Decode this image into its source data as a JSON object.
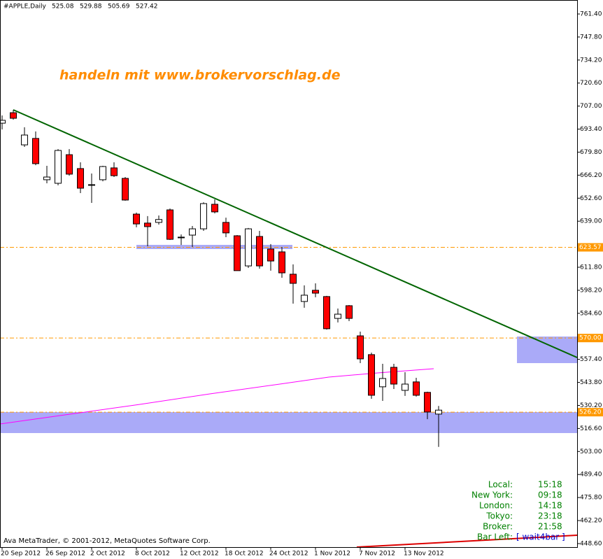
{
  "chart_data": {
    "type": "candlestick",
    "title": "#APPLE,Daily",
    "watermark": "handeln mit www.brokervorschlag.de",
    "footer": "Ava MetaTrader, © 2001-2012, MetaQuotes Software Corp.",
    "categories": [
      "20 Sep 2012",
      null,
      null,
      null,
      "26 Sep 2012",
      null,
      null,
      null,
      "2 Oct 2012",
      null,
      null,
      null,
      "8 Oct 2012",
      null,
      null,
      null,
      "12 Oct 2012",
      null,
      null,
      null,
      "18 Oct 2012",
      null,
      null,
      null,
      "24 Oct 2012",
      null,
      null,
      null,
      "1 Nov 2012",
      null,
      null,
      null,
      "7 Nov 2012",
      null,
      null,
      null,
      "13 Nov 2012",
      null,
      null,
      null
    ],
    "open": [
      696.9,
      703.1,
      684.1,
      687.9,
      663.5,
      661.4,
      678.3,
      670.1,
      660.2,
      663.5,
      670.5,
      664.3,
      643.2,
      637.9,
      638.3,
      645.7,
      629.2,
      630.8,
      634.5,
      649.0,
      638.3,
      630.4,
      612.6,
      630.0,
      622.6,
      620.9,
      607.7,
      591.6,
      598.2,
      594.5,
      581.6,
      589.1,
      571.3,
      560.2,
      541.2,
      552.7,
      539.1,
      544.1,
      537.9,
      525.08
    ],
    "high": [
      701.5,
      704.8,
      694.5,
      692.0,
      671.7,
      681.6,
      681.6,
      673.8,
      667.2,
      671.7,
      673.8,
      665.1,
      644.1,
      642.0,
      642.4,
      646.5,
      631.2,
      636.2,
      650.2,
      651.9,
      641.1,
      630.8,
      635.0,
      633.3,
      625.5,
      623.8,
      613.5,
      601.1,
      602.3,
      594.9,
      587.4,
      589.5,
      573.8,
      561.4,
      554.8,
      554.8,
      549.8,
      546.5,
      538.3,
      529.88
    ],
    "low": [
      693.2,
      699.0,
      682.9,
      672.1,
      661.4,
      660.2,
      665.9,
      655.6,
      649.8,
      662.6,
      665.1,
      651.1,
      635.4,
      624.2,
      637.0,
      627.9,
      625.0,
      623.8,
      633.3,
      643.6,
      629.6,
      609.8,
      611.4,
      611.0,
      609.8,
      605.6,
      590.3,
      587.9,
      594.1,
      575.0,
      579.2,
      580.0,
      555.2,
      534.1,
      532.9,
      539.9,
      535.8,
      535.4,
      522.1,
      505.69
    ],
    "close": [
      698.6,
      699.8,
      689.9,
      673.0,
      665.1,
      680.8,
      666.8,
      658.5,
      660.6,
      671.3,
      665.9,
      651.5,
      637.4,
      635.8,
      640.0,
      628.3,
      629.6,
      634.5,
      649.4,
      644.5,
      632.1,
      609.8,
      634.5,
      612.6,
      615.5,
      608.5,
      602.3,
      595.3,
      596.5,
      575.5,
      584.1,
      581.6,
      557.7,
      536.2,
      546.1,
      542.8,
      542.8,
      536.2,
      526.3,
      527.42
    ],
    "up_color": "#ffffff",
    "down_color": "#ff0000",
    "ylim": [
      446.1,
      769.66
    ],
    "yticks": [
      {
        "value": 761.4,
        "label": "761.40"
      },
      {
        "value": 747.8,
        "label": "747.80"
      },
      {
        "value": 734.2,
        "label": "734.20"
      },
      {
        "value": 720.6,
        "label": "720.60"
      },
      {
        "value": 707,
        "label": "707.00"
      },
      {
        "value": 693.4,
        "label": "693.40"
      },
      {
        "value": 679.8,
        "label": "679.80"
      },
      {
        "value": 666.2,
        "label": "666.20"
      },
      {
        "value": 652.6,
        "label": "652.60"
      },
      {
        "value": 639,
        "label": "639.00"
      },
      {
        "value": 611.8,
        "label": "611.80"
      },
      {
        "value": 598.2,
        "label": "598.20"
      },
      {
        "value": 584.6,
        "label": "584.60"
      },
      {
        "value": 557.4,
        "label": "557.40"
      },
      {
        "value": 543.8,
        "label": "543.80"
      },
      {
        "value": 530.2,
        "label": "530.20"
      },
      {
        "value": 516.6,
        "label": "516.60"
      },
      {
        "value": 503,
        "label": "503.00"
      },
      {
        "value": 489.4,
        "label": "489.40"
      },
      {
        "value": 475.8,
        "label": "475.80"
      },
      {
        "value": 462.2,
        "label": "462.20"
      },
      {
        "value": 448.6,
        "label": "448.60"
      }
    ],
    "levels": [
      623.57,
      {
        "value": 570,
        "label": "570.00"
      },
      {
        "value": 526.2,
        "label": "526.20"
      }
    ],
    "level_color": "#ff9900",
    "clock": [
      {
        "label": "Local:",
        "value": "15:18"
      },
      {
        "label": "New York:",
        "value": "09:18"
      },
      {
        "label": "London:",
        "value": "14:18"
      },
      {
        "label": "Tokyo:",
        "value": "23:18"
      },
      {
        "label": "Broker:",
        "value": "21:58"
      },
      {
        "label": "Bar Left:",
        "value": "[ wait4bar ]"
      }
    ]
  }
}
